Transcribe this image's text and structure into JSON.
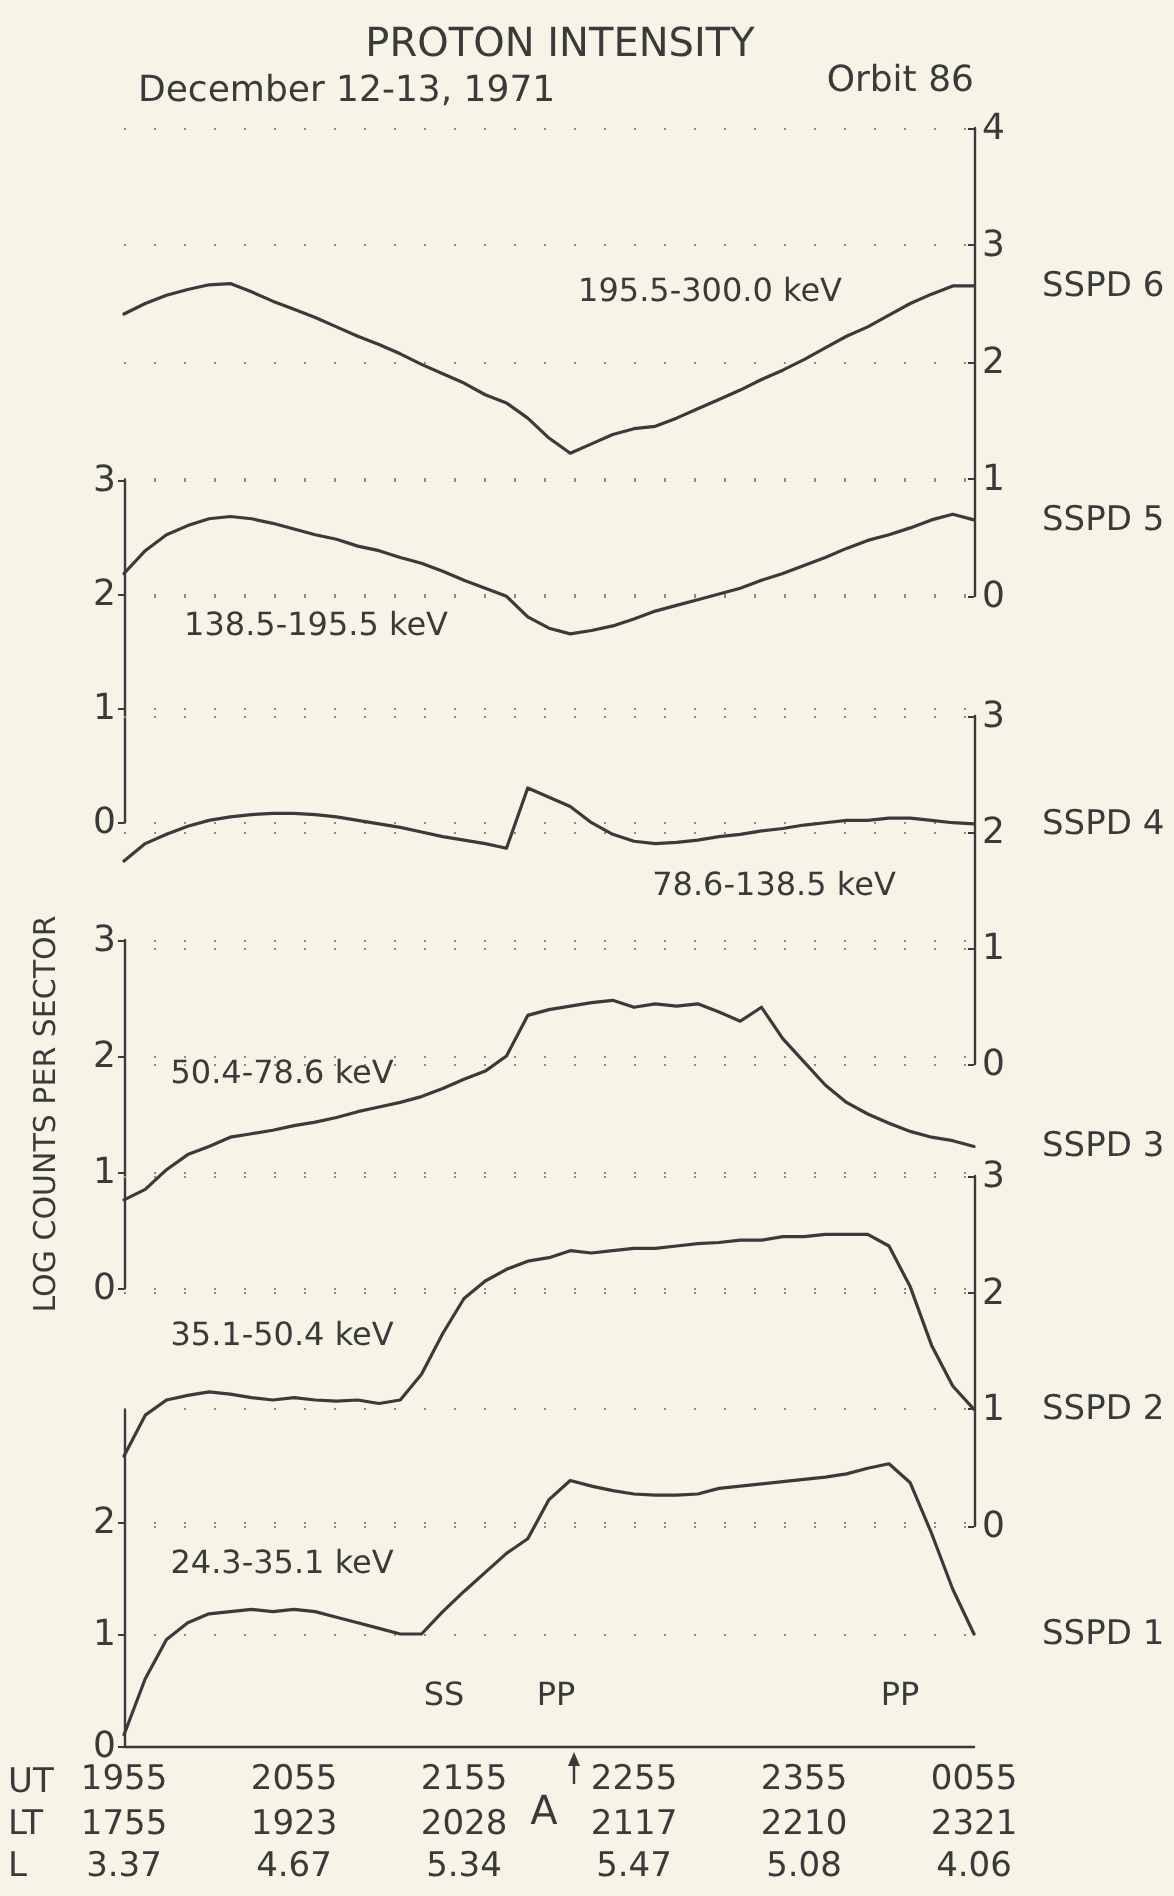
{
  "chart_data": [
    {
      "type": "line",
      "title": "PROTON INTENSITY",
      "subtitle": "December 12-13, 1971",
      "annotations": [
        "Orbit 86",
        "195.5-300.0 keV"
      ],
      "categories": [
        "1955",
        null,
        null,
        null,
        null,
        null,
        null,
        null,
        "2055",
        null,
        null,
        null,
        null,
        null,
        null,
        null,
        "2155",
        null,
        null,
        null,
        null,
        null,
        null,
        null,
        "2255",
        null,
        null,
        null,
        null,
        null,
        null,
        null,
        "2355",
        null,
        null,
        null,
        null,
        null,
        null,
        null,
        "0055"
      ],
      "series": [
        {
          "name": "SSPD 6",
          "color": "#3a3a3a",
          "axis": "y2",
          "values": [
            2.41,
            2.5,
            2.57,
            2.62,
            2.66,
            2.67,
            2.6,
            2.52,
            2.45,
            2.38,
            2.3,
            2.22,
            2.15,
            2.07,
            1.98,
            1.9,
            1.82,
            1.72,
            1.65,
            1.52,
            1.35,
            1.22,
            1.3,
            1.38,
            1.43,
            1.45,
            1.52,
            1.6,
            1.68,
            1.76,
            1.85,
            1.93,
            2.02,
            2.12,
            2.22,
            2.3,
            2.4,
            2.5,
            2.58,
            2.65,
            2.65
          ]
        }
      ],
      "y2lim": [
        0,
        4
      ],
      "y2ticks": [
        0,
        1,
        2,
        3,
        4
      ],
      "tick_labels": "y",
      "grid": "y",
      "legend": false,
      "marker": "none",
      "line_style": "solid"
    },
    {
      "type": "line",
      "annotations": [
        "138.5-195.5 keV"
      ],
      "categories": [
        "1955",
        null,
        null,
        null,
        null,
        null,
        null,
        null,
        "2055",
        null,
        null,
        null,
        null,
        null,
        null,
        null,
        "2155",
        null,
        null,
        null,
        null,
        null,
        null,
        null,
        "2255",
        null,
        null,
        null,
        null,
        null,
        null,
        null,
        "2355",
        null,
        null,
        null,
        null,
        null,
        null,
        null,
        "0055"
      ],
      "series": [
        {
          "name": "SSPD 5",
          "color": "#3a3a3a",
          "values": [
            2.18,
            2.38,
            2.52,
            2.6,
            2.66,
            2.68,
            2.66,
            2.62,
            2.57,
            2.52,
            2.48,
            2.42,
            2.38,
            2.32,
            2.27,
            2.2,
            2.12,
            2.05,
            1.98,
            1.8,
            1.7,
            1.65,
            1.68,
            1.72,
            1.78,
            1.85,
            1.9,
            1.95,
            2.0,
            2.05,
            2.12,
            2.18,
            2.25,
            2.32,
            2.4,
            2.47,
            2.52,
            2.58,
            2.65,
            2.7,
            2.65
          ]
        }
      ],
      "ylim": [
        0,
        3
      ],
      "yticks": [
        0,
        1,
        2,
        3
      ],
      "tick_labels": "y",
      "grid": "y",
      "legend": false,
      "marker": "none",
      "line_style": "solid"
    },
    {
      "type": "line",
      "annotations": [
        "78.6-138.5 keV"
      ],
      "categories": [
        "1955",
        null,
        null,
        null,
        null,
        null,
        null,
        null,
        "2055",
        null,
        null,
        null,
        null,
        null,
        null,
        null,
        "2155",
        null,
        null,
        null,
        null,
        null,
        null,
        null,
        "2255",
        null,
        null,
        null,
        null,
        null,
        null,
        null,
        "2355",
        null,
        null,
        null,
        null,
        null,
        null,
        null,
        "0055"
      ],
      "series": [
        {
          "name": "SSPD 4",
          "color": "#3a3a3a",
          "axis": "y2",
          "values": [
            1.75,
            1.9,
            1.98,
            2.05,
            2.1,
            2.13,
            2.15,
            2.16,
            2.16,
            2.15,
            2.13,
            2.1,
            2.07,
            2.04,
            2.0,
            1.96,
            1.93,
            1.9,
            1.86,
            2.38,
            2.3,
            2.22,
            2.08,
            1.98,
            1.92,
            1.9,
            1.91,
            1.93,
            1.96,
            1.98,
            2.01,
            2.03,
            2.06,
            2.08,
            2.1,
            2.1,
            2.12,
            2.12,
            2.1,
            2.08,
            2.07
          ]
        }
      ],
      "y2lim": [
        0,
        3
      ],
      "y2ticks": [
        0,
        1,
        2,
        3
      ],
      "tick_labels": "y",
      "grid": "y",
      "legend": false,
      "marker": "none",
      "line_style": "solid"
    },
    {
      "type": "line",
      "ylabel": "LOG COUNTS PER SECTOR",
      "annotations": [
        "50.4-78.6 keV"
      ],
      "categories": [
        "1955",
        null,
        null,
        null,
        null,
        null,
        null,
        null,
        "2055",
        null,
        null,
        null,
        null,
        null,
        null,
        null,
        "2155",
        null,
        null,
        null,
        null,
        null,
        null,
        null,
        "2255",
        null,
        null,
        null,
        null,
        null,
        null,
        null,
        "2355",
        null,
        null,
        null,
        null,
        null,
        null,
        null,
        "0055"
      ],
      "series": [
        {
          "name": "SSPD 3",
          "color": "#3a3a3a",
          "values": [
            0.76,
            0.85,
            1.02,
            1.15,
            1.22,
            1.3,
            1.33,
            1.36,
            1.4,
            1.43,
            1.47,
            1.52,
            1.56,
            1.6,
            1.65,
            1.72,
            1.8,
            1.87,
            2.0,
            2.35,
            2.4,
            2.43,
            2.46,
            2.48,
            2.42,
            2.45,
            2.43,
            2.45,
            2.38,
            2.3,
            2.42,
            2.15,
            1.95,
            1.75,
            1.6,
            1.5,
            1.42,
            1.35,
            1.3,
            1.27,
            1.22
          ]
        }
      ],
      "ylim": [
        0,
        3
      ],
      "yticks": [
        0,
        1,
        2,
        3
      ],
      "tick_labels": "y",
      "grid": "y",
      "legend": false,
      "marker": "none",
      "line_style": "solid"
    },
    {
      "type": "line",
      "annotations": [
        "35.1-50.4 keV"
      ],
      "categories": [
        "1955",
        null,
        null,
        null,
        null,
        null,
        null,
        null,
        "2055",
        null,
        null,
        null,
        null,
        null,
        null,
        null,
        "2155",
        null,
        null,
        null,
        null,
        null,
        null,
        null,
        "2255",
        null,
        null,
        null,
        null,
        null,
        null,
        null,
        "2355",
        null,
        null,
        null,
        null,
        null,
        null,
        null,
        "0055"
      ],
      "series": [
        {
          "name": "SSPD 2",
          "color": "#3a3a3a",
          "axis": "y2",
          "values": [
            0.6,
            0.95,
            1.08,
            1.12,
            1.15,
            1.13,
            1.1,
            1.08,
            1.1,
            1.08,
            1.07,
            1.08,
            1.05,
            1.08,
            1.3,
            1.65,
            1.95,
            2.1,
            2.2,
            2.27,
            2.3,
            2.36,
            2.34,
            2.36,
            2.38,
            2.38,
            2.4,
            2.42,
            2.43,
            2.45,
            2.45,
            2.48,
            2.48,
            2.5,
            2.5,
            2.5,
            2.4,
            2.05,
            1.55,
            1.2,
            1.0
          ]
        }
      ],
      "y2lim": [
        0,
        3
      ],
      "y2ticks": [
        0,
        1,
        2,
        3
      ],
      "tick_labels": "y",
      "grid": "y",
      "legend": false,
      "marker": "none",
      "line_style": "solid"
    },
    {
      "type": "line",
      "annotations": [
        "UT",
        "LT",
        "L",
        "1755",
        "1923",
        "2028",
        "2117",
        "2210",
        "2321",
        "3.37",
        "4.67",
        "5.34",
        "5.47",
        "5.08",
        "4.06",
        "24.3-35.1 keV",
        "SS",
        "PP",
        "PP",
        "A"
      ],
      "categories": [
        "1955",
        null,
        null,
        null,
        null,
        null,
        null,
        null,
        "2055",
        null,
        null,
        null,
        null,
        null,
        null,
        null,
        "2155",
        null,
        null,
        null,
        null,
        null,
        null,
        null,
        "2255",
        null,
        null,
        null,
        null,
        null,
        null,
        null,
        "2355",
        null,
        null,
        null,
        null,
        null,
        null,
        null,
        "0055"
      ],
      "series": [
        {
          "name": "SSPD 1",
          "color": "#3a3a3a",
          "values": [
            0.1,
            0.6,
            0.95,
            1.1,
            1.18,
            1.2,
            1.22,
            1.2,
            1.22,
            1.2,
            1.15,
            1.1,
            1.05,
            1.0,
            1.0,
            1.2,
            1.38,
            1.55,
            1.72,
            1.85,
            2.2,
            2.37,
            2.32,
            2.28,
            2.25,
            2.24,
            2.24,
            2.25,
            2.3,
            2.32,
            2.34,
            2.36,
            2.38,
            2.4,
            2.43,
            2.48,
            2.52,
            2.35,
            1.9,
            1.4,
            1.0
          ]
        }
      ],
      "ylim": [
        0,
        3
      ],
      "yticks": [
        0,
        1,
        2
      ],
      "grid": "y",
      "legend": false,
      "marker": "none",
      "line_style": "solid"
    }
  ]
}
